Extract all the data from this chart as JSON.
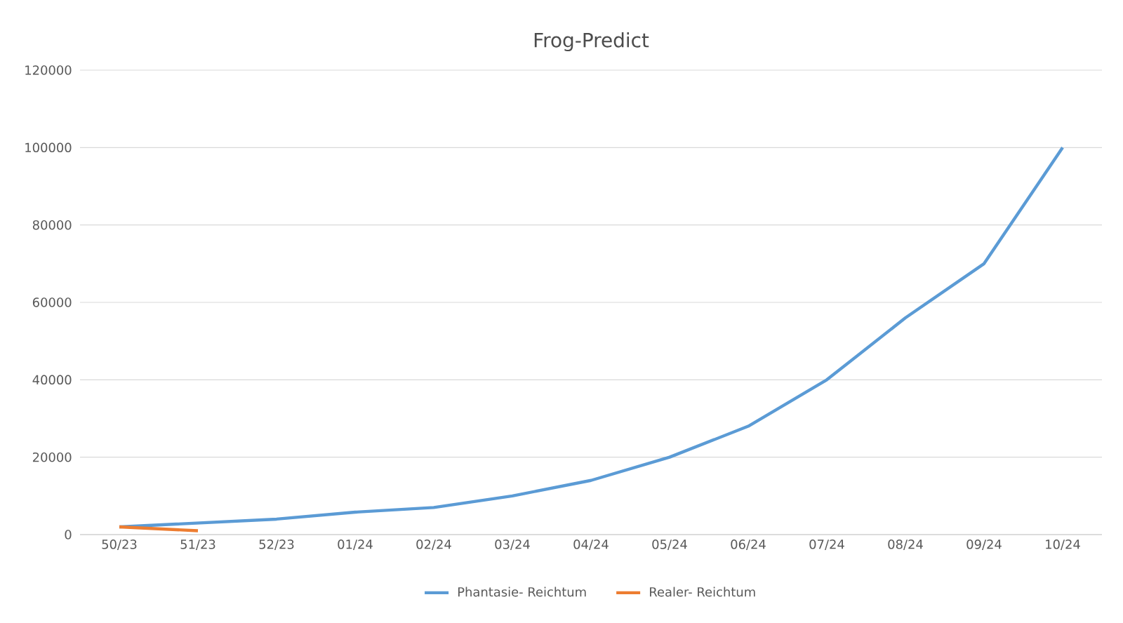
{
  "chart_data": {
    "type": "line",
    "title": "Frog-Predict",
    "categories": [
      "50/23",
      "51/23",
      "52/23",
      "01/24",
      "02/24",
      "03/24",
      "04/24",
      "05/24",
      "06/24",
      "07/24",
      "08/24",
      "09/24",
      "10/24"
    ],
    "series": [
      {
        "name": "Phantasie- Reichtum",
        "color": "#5b9bd5",
        "values": [
          2000,
          3000,
          4000,
          5800,
          7000,
          10000,
          14000,
          20000,
          28000,
          40000,
          56000,
          70000,
          100000
        ]
      },
      {
        "name": "Realer- Reichtum",
        "color": "#ed7d31",
        "values": [
          2000,
          1000,
          null,
          null,
          null,
          null,
          null,
          null,
          null,
          null,
          null,
          null,
          null
        ]
      }
    ],
    "ylim": [
      0,
      120000
    ],
    "yticks": [
      0,
      20000,
      40000,
      60000,
      80000,
      100000,
      120000
    ],
    "grid": "y",
    "legend": "bottom",
    "marker": "none",
    "line_style": "solid"
  }
}
